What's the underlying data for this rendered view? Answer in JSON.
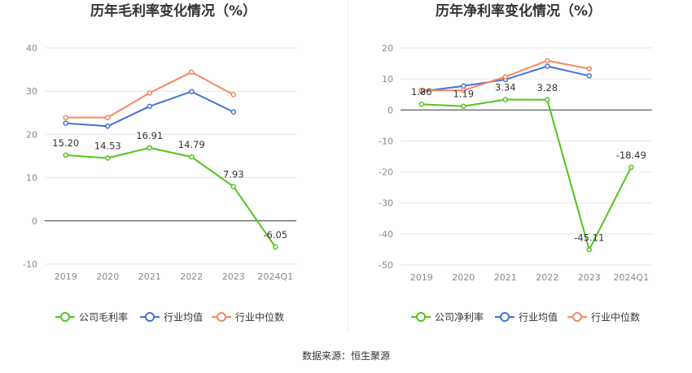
{
  "chart_data": [
    {
      "type": "line",
      "title": "历年毛利率变化情况（%）",
      "categories": [
        "2019",
        "2020",
        "2021",
        "2022",
        "2023",
        "2024Q1"
      ],
      "ylim": [
        -10,
        40
      ],
      "yticks": [
        -10,
        0,
        10,
        20,
        30,
        40
      ],
      "xlabel": "",
      "ylabel": "",
      "grid": true,
      "legend_position": "bottom",
      "series": [
        {
          "name": "公司毛利率",
          "color": "#52c41a",
          "values": [
            15.2,
            14.53,
            16.91,
            14.79,
            7.93,
            -6.05
          ],
          "labels": [
            "15.20",
            "14.53",
            "16.91",
            "14.79",
            "7.93",
            "-6.05"
          ]
        },
        {
          "name": "行业均值",
          "color": "#4472d9",
          "values": [
            22.6,
            21.9,
            26.5,
            29.9,
            25.2,
            null
          ],
          "labels": []
        },
        {
          "name": "行业中位数",
          "color": "#f4875c",
          "values": [
            23.9,
            23.9,
            29.6,
            34.4,
            29.2,
            null
          ],
          "labels": []
        }
      ]
    },
    {
      "type": "line",
      "title": "历年净利率变化情况（%）",
      "categories": [
        "2019",
        "2020",
        "2021",
        "2022",
        "2023",
        "2024Q1"
      ],
      "ylim": [
        -50,
        20
      ],
      "yticks": [
        -50,
        -40,
        -30,
        -20,
        -10,
        0,
        10,
        20
      ],
      "xlabel": "",
      "ylabel": "",
      "grid": true,
      "legend_position": "bottom",
      "series": [
        {
          "name": "公司净利率",
          "color": "#52c41a",
          "values": [
            1.86,
            1.19,
            3.34,
            3.28,
            -45.11,
            -18.49
          ],
          "labels": [
            "1.86",
            "1.19",
            "3.34",
            "3.28",
            "-45.11",
            "-18.49"
          ]
        },
        {
          "name": "行业均值",
          "color": "#4472d9",
          "values": [
            6.0,
            7.7,
            9.8,
            14.1,
            11.0,
            null
          ],
          "labels": []
        },
        {
          "name": "行业中位数",
          "color": "#f4875c",
          "values": [
            6.3,
            6.3,
            10.7,
            15.9,
            13.3,
            null
          ],
          "labels": []
        }
      ]
    }
  ],
  "footer": {
    "source": "数据来源：恒生聚源"
  }
}
